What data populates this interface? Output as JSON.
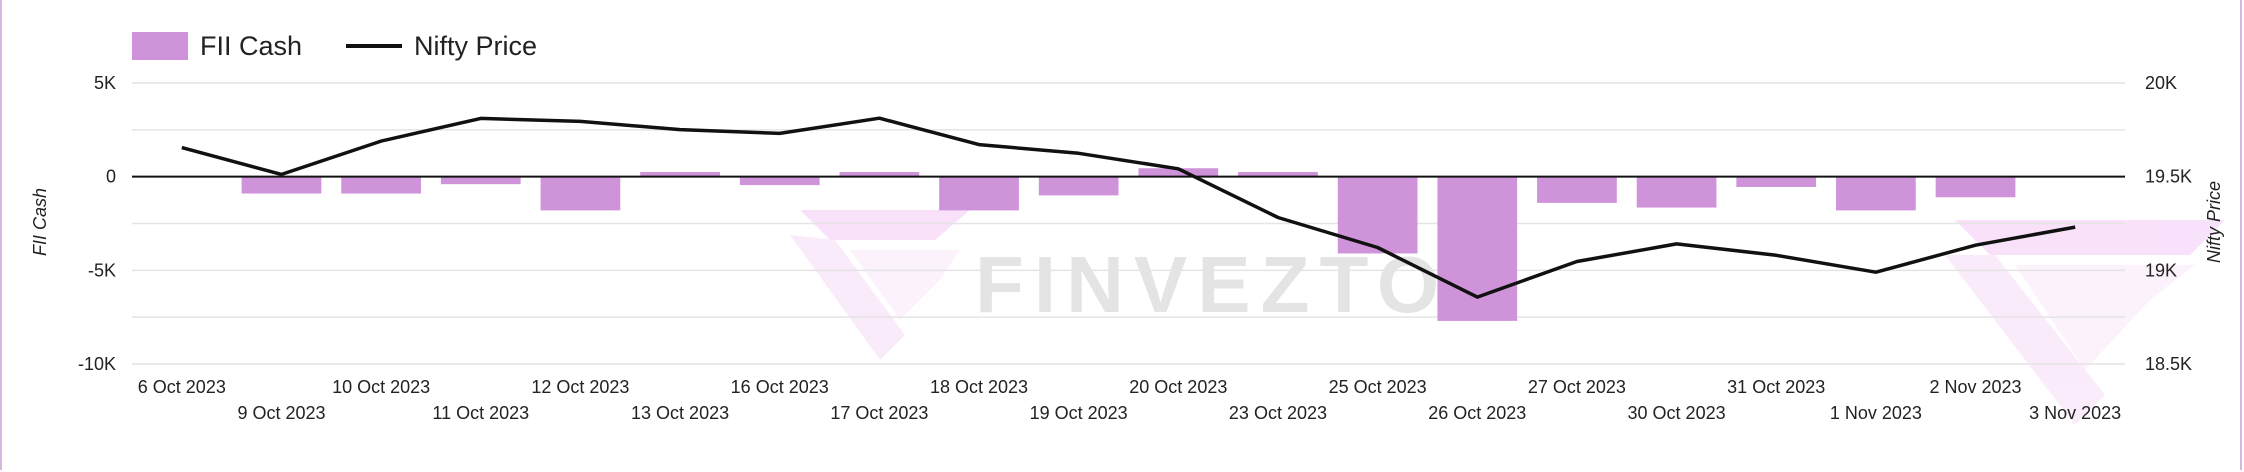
{
  "legend": {
    "bar_label": "FII Cash",
    "line_label": "Nifty Price"
  },
  "watermark": "FINVEZTO",
  "colors": {
    "bar": "#cf93da",
    "line": "#111111",
    "grid": "#e4e4e4",
    "zero_line": "#111111"
  },
  "chart_data": {
    "type": "bar",
    "categories": [
      "6 Oct 2023",
      "9 Oct 2023",
      "10 Oct 2023",
      "11 Oct 2023",
      "12 Oct 2023",
      "13 Oct 2023",
      "16 Oct 2023",
      "17 Oct 2023",
      "18 Oct 2023",
      "19 Oct 2023",
      "20 Oct 2023",
      "23 Oct 2023",
      "25 Oct 2023",
      "26 Oct 2023",
      "27 Oct 2023",
      "30 Oct 2023",
      "31 Oct 2023",
      "1 Nov 2023",
      "2 Nov 2023",
      "3 Nov 2023"
    ],
    "series": [
      {
        "name": "FII Cash",
        "type": "bar",
        "axis": "left",
        "values": [
          0,
          -900,
          -900,
          -400,
          -1800,
          250,
          -450,
          250,
          -1800,
          -1000,
          450,
          250,
          -4100,
          -7700,
          -1400,
          -1650,
          -550,
          -1800,
          -1100,
          0
        ]
      },
      {
        "name": "Nifty Price",
        "type": "line",
        "axis": "right",
        "values": [
          19655,
          19512,
          19690,
          19811,
          19795,
          19751,
          19731,
          19812,
          19671,
          19625,
          19542,
          19282,
          19122,
          18857,
          19047,
          19141,
          19080,
          18990,
          19134,
          19231
        ]
      }
    ],
    "ylabel": "FII Cash",
    "y2label": "Nifty Price",
    "ylim": [
      -10000,
      5000
    ],
    "y2lim": [
      18500,
      20000
    ],
    "yticks": [
      5000,
      0,
      -5000,
      -10000
    ],
    "yticklabels": [
      "5K",
      "0",
      "-5K",
      "-10K"
    ],
    "y2ticks": [
      20000,
      19500,
      19000,
      18500
    ],
    "y2ticklabels": [
      "20K",
      "19.5K",
      "19K",
      "18.5K"
    ],
    "grid": true,
    "legend_position": "top-left"
  }
}
